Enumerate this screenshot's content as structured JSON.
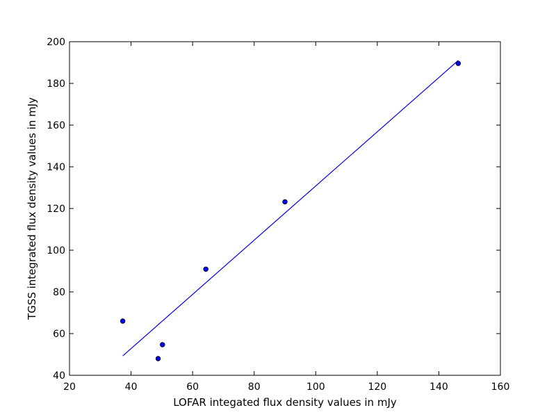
{
  "chart_data": {
    "type": "scatter",
    "title": "",
    "xlabel": "LOFAR integated flux density values in mJy",
    "ylabel": "TGSS integrated flux density values in mJy",
    "xlim": [
      20,
      160
    ],
    "ylim": [
      40,
      200
    ],
    "xticks": [
      20,
      40,
      60,
      80,
      100,
      120,
      140,
      160
    ],
    "yticks": [
      40,
      60,
      80,
      100,
      120,
      140,
      160,
      180,
      200
    ],
    "grid": false,
    "legend": "none",
    "series": [
      {
        "kind": "scatter",
        "color": "#0000ff",
        "edge_color": "#000000",
        "points": [
          {
            "x": 37.3,
            "y": 66.0
          },
          {
            "x": 48.8,
            "y": 48.0
          },
          {
            "x": 50.2,
            "y": 54.7
          },
          {
            "x": 64.3,
            "y": 90.9
          },
          {
            "x": 90.0,
            "y": 123.2
          },
          {
            "x": 146.3,
            "y": 189.6
          }
        ]
      },
      {
        "kind": "line",
        "color": "#0000ff",
        "points": [
          {
            "x": 37.3,
            "y": 49.3
          },
          {
            "x": 146.3,
            "y": 191.0
          }
        ]
      }
    ]
  }
}
